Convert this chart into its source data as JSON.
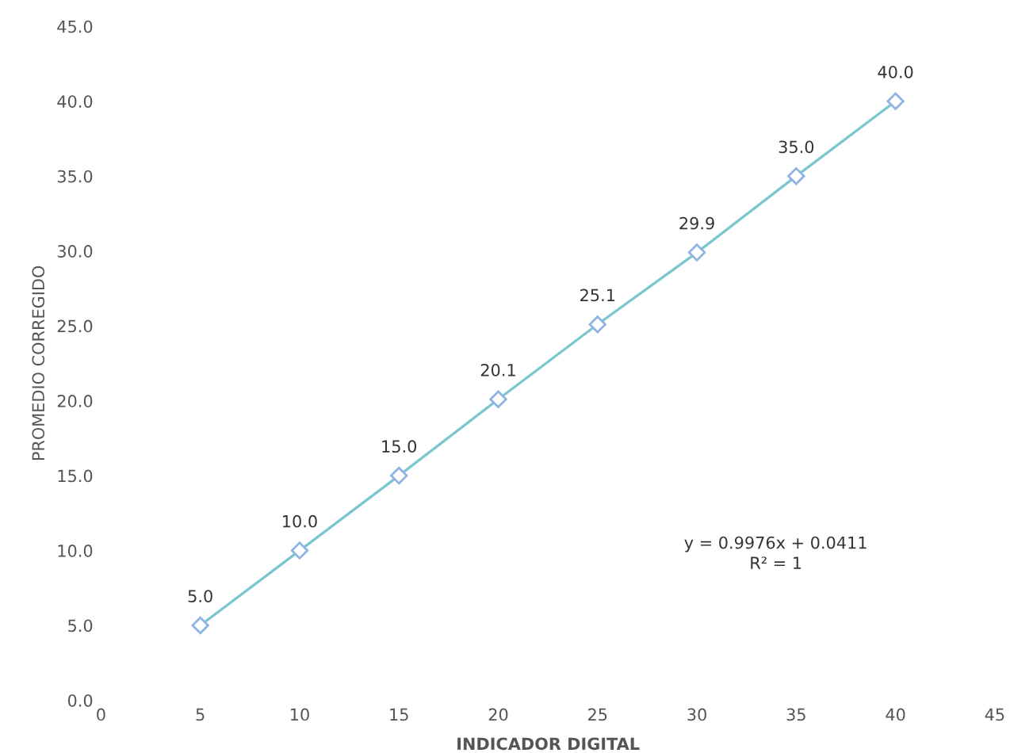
{
  "chart_data": {
    "type": "line",
    "xlabel": "INDICADOR DIGITAL",
    "ylabel": "PROMEDIO CORREGIDO",
    "x": [
      5,
      10,
      15,
      20,
      25,
      30,
      35,
      40
    ],
    "series": [
      {
        "color": "#7cc7cf",
        "values": [
          5.0,
          10.0,
          15.0,
          20.1,
          25.1,
          29.9,
          35.0,
          40.0
        ],
        "value_labels": [
          "5.0",
          "10.0",
          "15.0",
          "20.1",
          "25.1",
          "29.9",
          "35.0",
          "40.0"
        ]
      }
    ],
    "marker": "diamond",
    "grid": false,
    "xlim": [
      0,
      45
    ],
    "xticks": [
      0,
      5,
      10,
      15,
      20,
      25,
      30,
      35,
      40,
      45
    ],
    "ylim": [
      0,
      45
    ],
    "yticks": [
      {
        "value": 0,
        "label": "0.0"
      },
      {
        "value": 5,
        "label": "5.0"
      },
      {
        "value": 10,
        "label": "10.0"
      },
      {
        "value": 15,
        "label": "15.0"
      },
      {
        "value": 20,
        "label": "20.0"
      },
      {
        "value": 25,
        "label": "25.0"
      },
      {
        "value": 30,
        "label": "30.0"
      },
      {
        "value": 35,
        "label": "35.0"
      },
      {
        "value": 40,
        "label": "40.0"
      },
      {
        "value": 45,
        "label": "45.0"
      }
    ],
    "annotations": [
      "y = 0.9976x + 0.0411",
      "R² = 1"
    ]
  }
}
